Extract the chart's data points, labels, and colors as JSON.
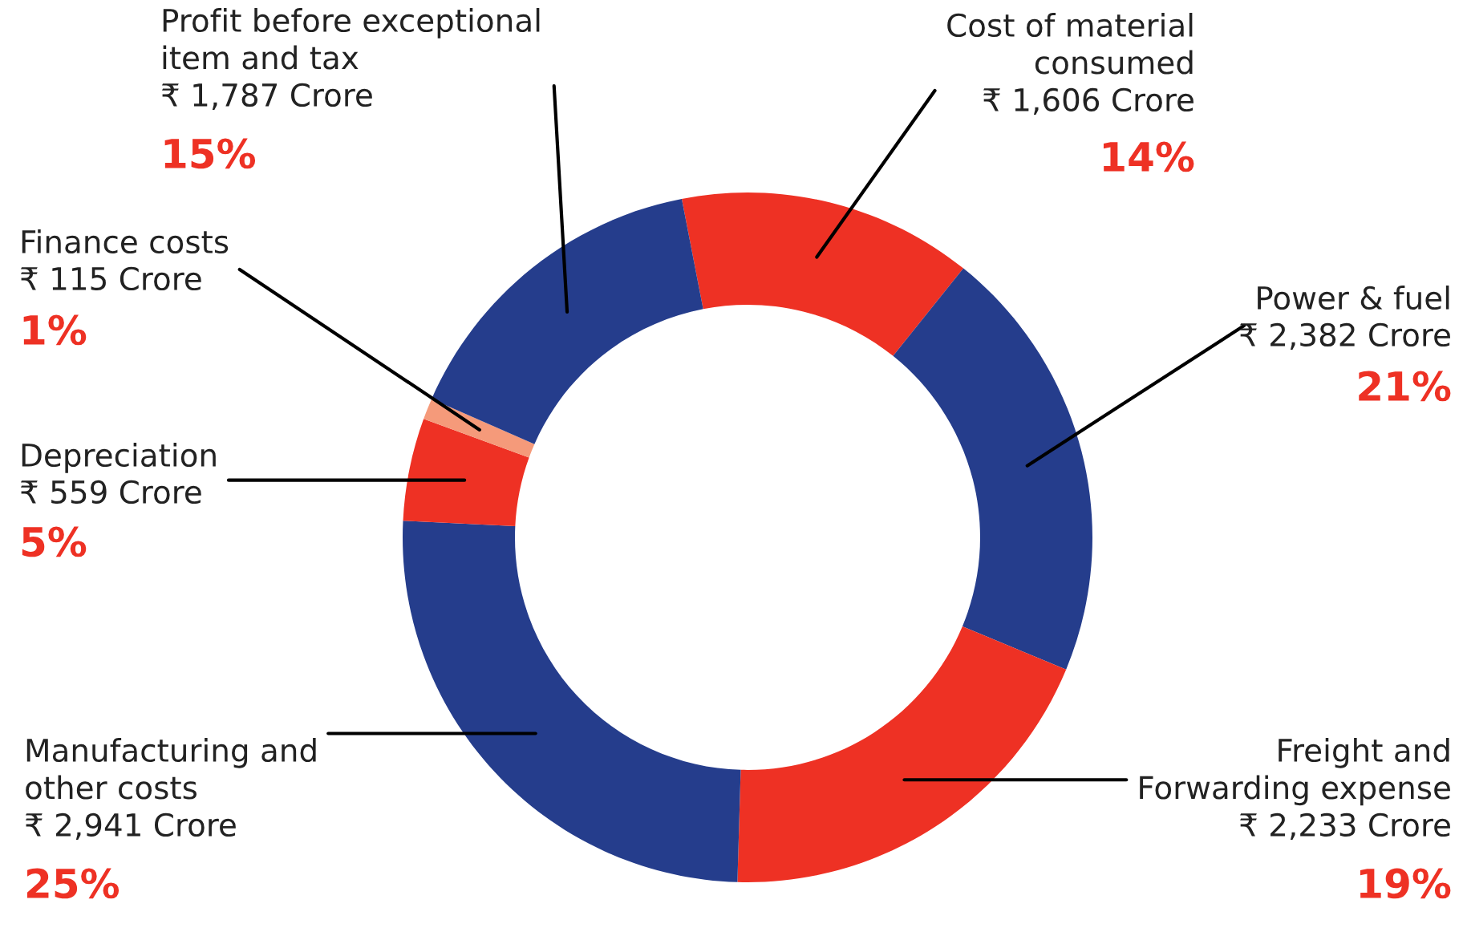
{
  "chart_data": {
    "type": "donut",
    "categories": [
      "Cost of material\nconsumed",
      "Power & fuel",
      "Freight and\nForwarding expense",
      "Manufacturing and\nother costs",
      "Depreciation",
      "Finance costs",
      "Profit before exceptional\nitem and tax"
    ],
    "values": [
      1606,
      2382,
      2233,
      2941,
      559,
      115,
      1787
    ],
    "value_labels": [
      "₹ 1,606 Crore",
      "₹ 2,382 Crore",
      "₹ 2,233 Crore",
      "₹ 2,941 Crore",
      "₹ 559 Crore",
      "₹ 115 Crore",
      "₹ 1,787 Crore"
    ],
    "colors": [
      "#ee3124",
      "#253d8c",
      "#ee3124",
      "#253d8c",
      "#ee3124",
      "#f59a7a",
      "#253d8c"
    ],
    "annotations": [
      "14%",
      "21%",
      "19%",
      "25%",
      "5%",
      "1%",
      "15%"
    ],
    "legend": false
  }
}
